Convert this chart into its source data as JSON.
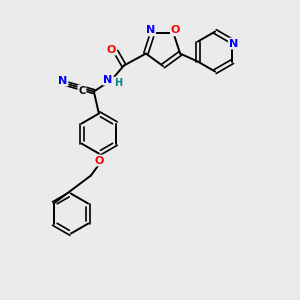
{
  "background_color": "#ebebeb",
  "bond_color": "#000000",
  "atom_colors": {
    "N": "#0000ff",
    "O": "#ff0000",
    "C": "#000000",
    "H": "#008080"
  },
  "figsize": [
    3.0,
    3.0
  ],
  "dpi": 100
}
